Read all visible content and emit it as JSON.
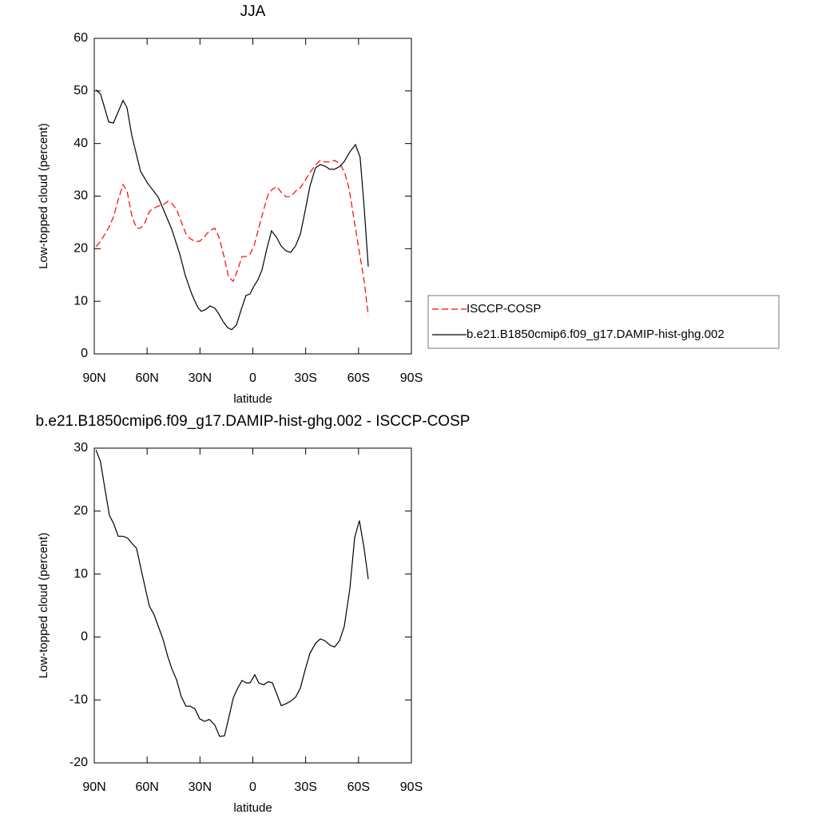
{
  "chart_data": [
    {
      "type": "line",
      "title": "JJA",
      "xlabel": "latitude",
      "ylabel": "Low-topped cloud (percent)",
      "xlim": [
        90,
        -90
      ],
      "ylim": [
        0,
        60
      ],
      "xticks": [
        {
          "value": 90,
          "label": "90N"
        },
        {
          "value": 60,
          "label": "60N"
        },
        {
          "value": 30,
          "label": "30N"
        },
        0,
        {
          "value": -30,
          "label": "30S"
        },
        {
          "value": -60,
          "label": "60S"
        },
        {
          "value": -90,
          "label": "90S"
        }
      ],
      "yticks": [
        0,
        10,
        20,
        30,
        40,
        50,
        60
      ],
      "legend": "right",
      "series": [
        {
          "name": "ISCCP-COSP",
          "color": "#ff0000",
          "dashed": true,
          "x": [
            89,
            86.4,
            81.8,
            79.1,
            76.4,
            73.7,
            71.4,
            68.7,
            66,
            63.7,
            61,
            58.7,
            56,
            53.7,
            51,
            48.3,
            46,
            43.3,
            40.6,
            37.9,
            35.6,
            32.9,
            30.2,
            27.4,
            24.7,
            21.6,
            19.3,
            16.1,
            13.8,
            11.1,
            8.9,
            6.1,
            3.9,
            1.6,
            -0.7,
            -3.4,
            -6.1,
            -8.8,
            -11.1,
            -13.8,
            -16.1,
            -18.8,
            -21.5,
            -24.2,
            -27,
            -29.7,
            -32.4,
            -35.6,
            -38.3,
            -41,
            -43.7,
            -46.4,
            -49.2,
            -51.9,
            -54.6,
            -57.8,
            -60.5,
            -63.2,
            -65.5
          ],
          "values": [
            20.4,
            21.4,
            24.0,
            26.0,
            29.3,
            32.2,
            31.0,
            26.3,
            23.9,
            23.9,
            25.1,
            27.1,
            27.7,
            28.1,
            28.3,
            29.0,
            28.6,
            27.5,
            25.1,
            22.8,
            21.9,
            21.4,
            21.4,
            22.3,
            23.4,
            23.9,
            22.3,
            18.2,
            14.6,
            13.8,
            15.7,
            18.5,
            18.5,
            19.0,
            20.5,
            24.0,
            27.4,
            30.4,
            31.3,
            31.8,
            30.7,
            29.9,
            29.9,
            30.9,
            31.6,
            33.0,
            34.5,
            35.9,
            36.8,
            36.5,
            36.5,
            36.8,
            36.2,
            34.7,
            31.5,
            24.8,
            19.3,
            13.8,
            7.3
          ]
        },
        {
          "name": "b.e21.B1850cmip6.f09_g17.DAMIP-hist-ghg.002",
          "color": "#000000",
          "dashed": false,
          "x": [
            89,
            86.4,
            81.8,
            79.1,
            73.7,
            71.4,
            68.7,
            63.7,
            59.6,
            53.7,
            46,
            41.5,
            38.3,
            34.7,
            33.3,
            31.1,
            29.3,
            27,
            24.3,
            21.6,
            19.3,
            17,
            14.3,
            12,
            9.3,
            6.6,
            3.9,
            1.6,
            -0.7,
            -2.9,
            -5.2,
            -7.9,
            -10.6,
            -13.4,
            -16.1,
            -18.8,
            -21.5,
            -24.2,
            -27,
            -29.7,
            -32.4,
            -35.6,
            -38.3,
            -41,
            -43.7,
            -46.4,
            -49.2,
            -51.9,
            -55.1,
            -58.2,
            -60.9,
            -63.2,
            -65.5
          ],
          "values": [
            50.2,
            49.4,
            44.1,
            43.9,
            48.2,
            46.8,
            41.5,
            34.7,
            32.4,
            29.8,
            23.7,
            19.0,
            14.9,
            11.4,
            10.3,
            8.8,
            8.1,
            8.4,
            9.1,
            8.7,
            7.6,
            6.2,
            5.0,
            4.6,
            5.5,
            8.4,
            11.1,
            11.4,
            12.9,
            14.1,
            16.0,
            19.9,
            23.4,
            22.2,
            20.5,
            19.6,
            19.3,
            20.5,
            22.8,
            27.2,
            31.9,
            35.4,
            36.0,
            35.7,
            35.1,
            35.1,
            35.6,
            36.6,
            38.4,
            39.8,
            37.4,
            27.8,
            16.6
          ]
        }
      ]
    },
    {
      "type": "line",
      "title": "b.e21.B1850cmip6.f09_g17.DAMIP-hist-ghg.002 - ISCCP-COSP",
      "xlabel": "latitude",
      "ylabel": "Low-topped cloud (percent)",
      "xlim": [
        90,
        -90
      ],
      "ylim": [
        -20,
        30
      ],
      "xticks": [
        {
          "value": 90,
          "label": "90N"
        },
        {
          "value": 60,
          "label": "60N"
        },
        {
          "value": 30,
          "label": "30N"
        },
        0,
        {
          "value": -30,
          "label": "30S"
        },
        {
          "value": -60,
          "label": "60S"
        },
        {
          "value": -90,
          "label": "90S"
        }
      ],
      "yticks": [
        -20,
        -10,
        0,
        10,
        20,
        30
      ],
      "series": [
        {
          "color": "#000000",
          "dashed": false,
          "x": [
            89,
            86.4,
            84.1,
            81.4,
            79.1,
            76.4,
            73.7,
            71,
            68.7,
            66,
            63.7,
            61,
            58.7,
            56,
            53.7,
            51,
            48.3,
            46,
            43.3,
            40.6,
            37.9,
            35.6,
            32.9,
            30.2,
            27.4,
            24.7,
            21.6,
            18.8,
            16.1,
            13.8,
            11.1,
            8.9,
            6.1,
            3.9,
            1.6,
            -1.1,
            -3.4,
            -6.1,
            -8.8,
            -11.1,
            -13.8,
            -16.1,
            -18.8,
            -21.5,
            -24.2,
            -27,
            -29.7,
            -32.4,
            -35.6,
            -38.3,
            -41,
            -43.7,
            -46.4,
            -49.2,
            -51.9,
            -55.1,
            -57.8,
            -60.5,
            -63.2,
            -65.5
          ],
          "values": [
            29.7,
            27.8,
            23.8,
            19.3,
            18.1,
            16.0,
            16.0,
            15.7,
            14.9,
            14.1,
            11.1,
            7.7,
            4.9,
            3.5,
            1.7,
            -0.3,
            -3.1,
            -5.0,
            -6.8,
            -9.5,
            -11.0,
            -11.0,
            -11.4,
            -13.0,
            -13.4,
            -13.1,
            -14.0,
            -15.8,
            -15.7,
            -13.0,
            -9.7,
            -8.3,
            -6.9,
            -7.3,
            -7.3,
            -6.0,
            -7.3,
            -7.6,
            -7.1,
            -7.3,
            -9.2,
            -10.9,
            -10.6,
            -10.2,
            -9.6,
            -8.1,
            -5.2,
            -2.6,
            -1.0,
            -0.3,
            -0.6,
            -1.3,
            -1.6,
            -0.6,
            1.7,
            7.7,
            15.8,
            18.5,
            14.0,
            9.2
          ]
        }
      ]
    }
  ]
}
